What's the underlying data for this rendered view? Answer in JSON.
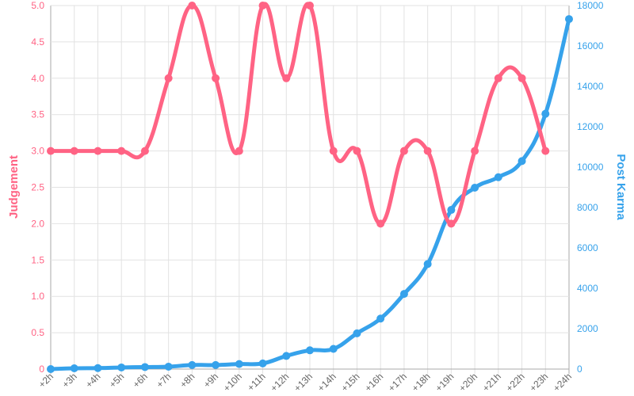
{
  "chart_data": {
    "type": "line",
    "x": [
      "+2h",
      "+3h",
      "+4h",
      "+5h",
      "+6h",
      "+7h",
      "+8h",
      "+9h",
      "+10h",
      "+11h",
      "+12h",
      "+13h",
      "+14h",
      "+15h",
      "+16h",
      "+17h",
      "+18h",
      "+19h",
      "+20h",
      "+21h",
      "+22h",
      "+23h",
      "+24h"
    ],
    "series": [
      {
        "axis": "left",
        "color": "#ff6384",
        "values": [
          3,
          3,
          3,
          3,
          3,
          4,
          5,
          4,
          3,
          5,
          4,
          5,
          3,
          3,
          2,
          3,
          3,
          2,
          3,
          4,
          4,
          3,
          null
        ]
      },
      {
        "axis": "right",
        "color": "#36a2eb",
        "values": [
          0,
          40,
          50,
          80,
          100,
          120,
          200,
          200,
          250,
          280,
          650,
          930,
          1000,
          1770,
          2500,
          3720,
          5200,
          7880,
          8980,
          9500,
          10300,
          12640,
          17330
        ]
      }
    ],
    "y_left": {
      "label": "Judgement",
      "range": [
        0,
        5
      ],
      "ticks": [
        "0",
        "0.5",
        "1.0",
        "1.5",
        "2.0",
        "2.5",
        "3.0",
        "3.5",
        "4.0",
        "4.5",
        "5.0"
      ],
      "color": "#ff6384"
    },
    "y_right": {
      "label": "Post Karma",
      "range": [
        0,
        18000
      ],
      "ticks": [
        "0",
        "2000",
        "4000",
        "6000",
        "8000",
        "10000",
        "12000",
        "14000",
        "16000",
        "18000"
      ],
      "color": "#36a2eb"
    },
    "grid": true,
    "smooth": true
  }
}
